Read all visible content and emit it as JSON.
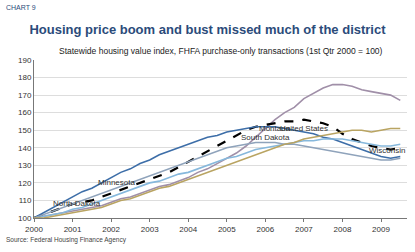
{
  "chart_data": {
    "type": "line",
    "chart_number": "CHART 9",
    "title": "Housing price boom and bust missed much of the district",
    "subtitle": "Statewide housing value index, FHFA purchase-only transactions (1st Qtr 2000 = 100)",
    "source": "Source: Federal Housing Finance Agency",
    "categories": [
      "2000",
      null,
      null,
      null,
      "2001",
      null,
      null,
      null,
      "2002",
      null,
      null,
      null,
      "2003",
      null,
      null,
      null,
      "2004",
      null,
      null,
      null,
      "2005",
      null,
      null,
      null,
      "2006",
      null,
      null,
      null,
      "2007",
      null,
      null,
      null,
      "2008",
      null,
      null,
      null,
      "2009",
      null,
      null
    ],
    "series": [
      {
        "name": "Montana",
        "color": "#a08fa8",
        "line_style": "solid",
        "values": [
          100,
          101,
          102,
          103,
          104,
          105,
          106,
          107,
          109,
          111,
          112,
          114,
          116,
          118,
          119,
          121,
          123,
          126,
          128,
          131,
          134,
          137,
          141,
          146,
          151,
          156,
          160,
          163,
          168,
          171,
          174,
          176,
          176,
          175,
          173,
          172,
          171,
          170,
          167
        ]
      },
      {
        "name": "United States",
        "color": "#000000",
        "line_style": "dashed",
        "values": [
          100,
          102,
          104,
          106,
          108,
          109,
          110,
          112,
          114,
          116,
          118,
          120,
          122,
          124,
          126,
          129,
          132,
          135,
          138,
          141,
          144,
          147,
          150,
          152,
          153,
          154,
          155,
          155,
          156,
          155,
          154,
          152,
          148,
          145,
          143,
          141,
          140,
          139,
          140
        ]
      },
      {
        "name": "Minnesota",
        "color": "#3d6ea8",
        "line_style": "solid",
        "values": [
          100,
          103,
          106,
          109,
          112,
          115,
          117,
          120,
          123,
          126,
          128,
          131,
          133,
          136,
          138,
          140,
          142,
          144,
          146,
          147,
          149,
          150,
          151,
          152,
          152,
          152,
          151,
          150,
          149,
          148,
          146,
          145,
          143,
          141,
          139,
          137,
          135,
          134,
          135
        ]
      },
      {
        "name": "South Dakota",
        "color": "#86b8dc",
        "line_style": "solid",
        "values": [
          100,
          101,
          102,
          103,
          105,
          106,
          108,
          110,
          112,
          114,
          116,
          118,
          120,
          121,
          123,
          125,
          126,
          128,
          130,
          132,
          134,
          135,
          137,
          139,
          140,
          141,
          142,
          143,
          144,
          144,
          145,
          145,
          145,
          144,
          143,
          142,
          141,
          141,
          142
        ]
      },
      {
        "name": "Wisconsin",
        "color": "#8fa3bb",
        "line_style": "solid",
        "values": [
          100,
          102,
          104,
          106,
          108,
          110,
          112,
          114,
          116,
          118,
          120,
          122,
          124,
          126,
          128,
          130,
          132,
          134,
          136,
          138,
          140,
          141,
          142,
          143,
          143,
          143,
          142,
          142,
          141,
          140,
          139,
          138,
          137,
          136,
          135,
          134,
          133,
          133,
          134
        ]
      },
      {
        "name": "North Dakota",
        "color": "#b9a462",
        "line_style": "solid",
        "values": [
          100,
          100,
          101,
          102,
          103,
          104,
          105,
          106,
          108,
          110,
          111,
          113,
          115,
          117,
          118,
          120,
          122,
          124,
          126,
          128,
          130,
          132,
          134,
          136,
          138,
          140,
          142,
          143,
          145,
          146,
          147,
          148,
          149,
          150,
          150,
          149,
          150,
          151,
          151
        ]
      }
    ],
    "ylim": [
      100,
      190
    ],
    "yticks": [
      100,
      110,
      120,
      130,
      140,
      150,
      160,
      170,
      180,
      190
    ],
    "grid": true
  }
}
